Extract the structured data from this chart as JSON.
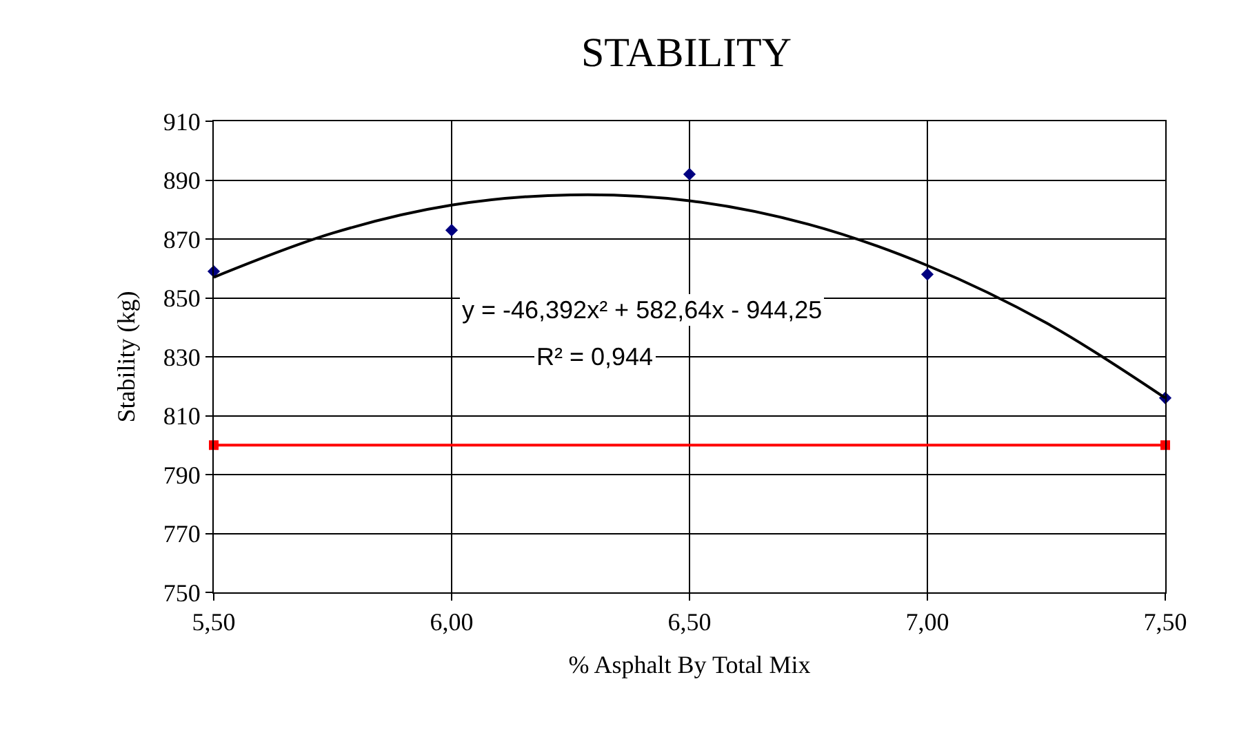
{
  "chart_data": {
    "type": "scatter",
    "title": "STABILITY",
    "xlabel": "% Asphalt By Total Mix",
    "ylabel": "Stability (kg)",
    "series": [
      {
        "color": "#000080",
        "marker": "diamond",
        "x": [
          5.5,
          6.0,
          6.5,
          7.0,
          7.5
        ],
        "values": [
          859,
          873,
          892,
          858,
          816
        ]
      },
      {
        "type": "line",
        "color": "#000000",
        "marker": "none",
        "x": [
          5.5,
          5.75,
          6.0,
          6.25,
          6.5,
          6.75,
          7.0,
          7.25,
          7.5
        ],
        "values": [
          857,
          872,
          881.5,
          885,
          883,
          875,
          861,
          841.5,
          816
        ]
      },
      {
        "type": "line",
        "color": "#ff0000",
        "marker": "square",
        "x": [
          5.5,
          7.5
        ],
        "values": [
          800,
          800
        ]
      }
    ],
    "annotations": [
      "y = -46,392x² + 582,64x - 944,25",
      "R² = 0,944"
    ],
    "xlim": [
      5.5,
      7.5
    ],
    "ylim": [
      750,
      910
    ],
    "xticks": [
      {
        "value": 5.5,
        "label": "5,50"
      },
      {
        "value": 6.0,
        "label": "6,00"
      },
      {
        "value": 6.5,
        "label": "6,50"
      },
      {
        "value": 7.0,
        "label": "7,00"
      },
      {
        "value": 7.5,
        "label": "7,50"
      }
    ],
    "yticks": [
      750,
      770,
      790,
      810,
      830,
      850,
      870,
      890,
      910
    ],
    "grid": true,
    "legend": false
  }
}
